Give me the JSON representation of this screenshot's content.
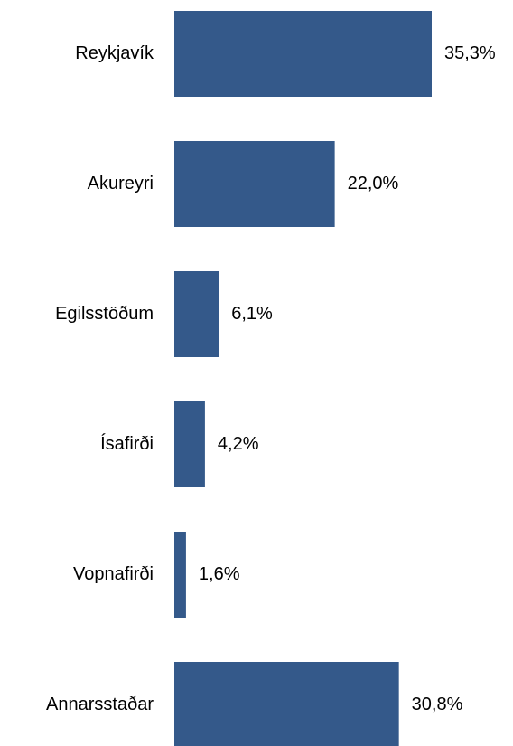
{
  "chart_data": {
    "type": "bar",
    "orientation": "horizontal",
    "categories": [
      "Reykjavík",
      "Akureyri",
      "Egilsstöðum",
      "Ísafirði",
      "Vopnafirði",
      "Annarsstaðar"
    ],
    "values": [
      35.3,
      22.0,
      6.1,
      4.2,
      1.6,
      30.8
    ],
    "value_labels": [
      "35,3%",
      "22,0%",
      "6,1%",
      "4,2%",
      "1,6%",
      "30,8%"
    ],
    "color": "#34598a"
  }
}
